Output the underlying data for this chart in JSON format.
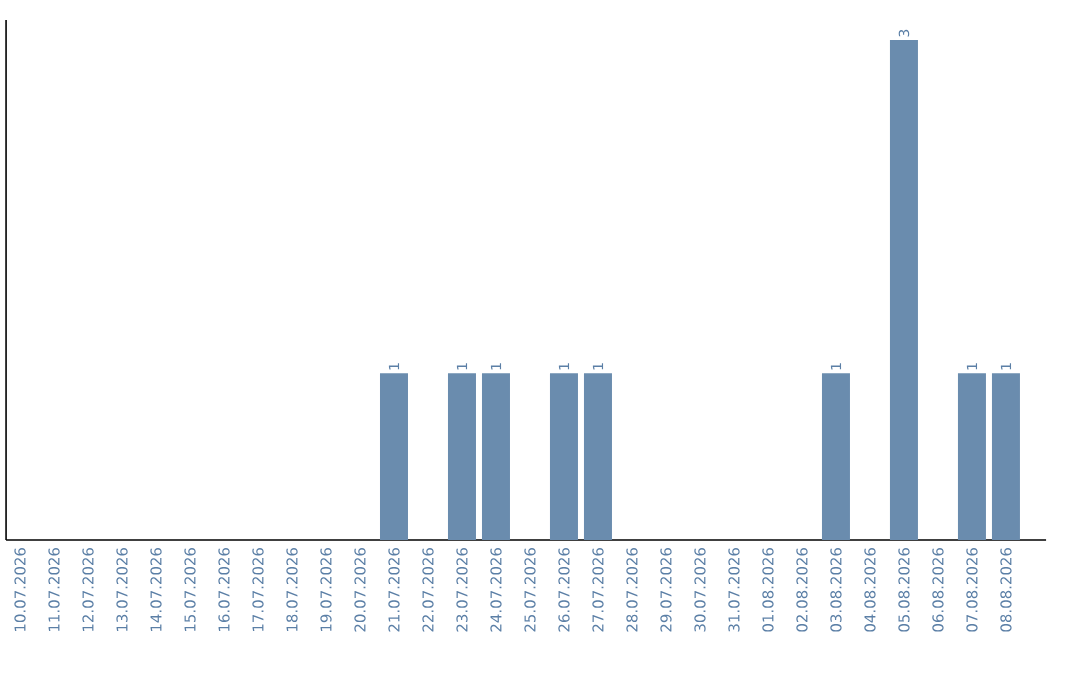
{
  "chart_data": {
    "type": "bar",
    "categories": [
      "10.07.2026",
      "11.07.2026",
      "12.07.2026",
      "13.07.2026",
      "14.07.2026",
      "15.07.2026",
      "16.07.2026",
      "17.07.2026",
      "18.07.2026",
      "19.07.2026",
      "20.07.2026",
      "21.07.2026",
      "22.07.2026",
      "23.07.2026",
      "24.07.2026",
      "25.07.2026",
      "26.07.2026",
      "27.07.2026",
      "28.07.2026",
      "29.07.2026",
      "30.07.2026",
      "31.07.2026",
      "01.08.2026",
      "02.08.2026",
      "03.08.2026",
      "04.08.2026",
      "05.08.2026",
      "06.08.2026",
      "07.08.2026",
      "08.08.2026"
    ],
    "values": [
      0,
      0,
      0,
      0,
      0,
      0,
      0,
      0,
      0,
      0,
      0,
      1,
      0,
      1,
      1,
      0,
      1,
      1,
      0,
      0,
      0,
      0,
      0,
      0,
      1,
      0,
      3,
      0,
      1,
      1
    ],
    "value_labels": [
      null,
      null,
      null,
      null,
      null,
      null,
      null,
      null,
      null,
      null,
      null,
      "1",
      null,
      "1",
      "1",
      null,
      "1",
      "1",
      null,
      null,
      null,
      null,
      null,
      null,
      "1",
      null,
      "3",
      null,
      "1",
      "1"
    ],
    "color": "#6a8cae"
  }
}
